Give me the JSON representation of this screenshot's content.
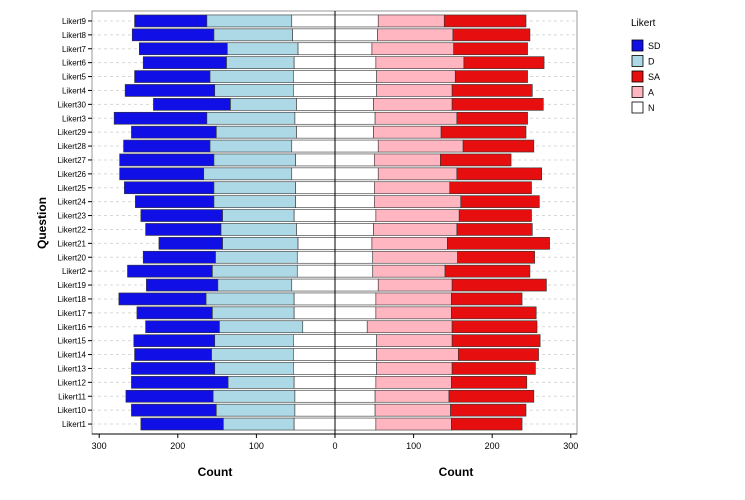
{
  "chart_data": {
    "type": "bar",
    "orientation": "horizontal-diverging-stacked",
    "ylabel": "Question",
    "xlabel_left": "Count",
    "xlabel_right": "Count",
    "xlim": [
      -300,
      300
    ],
    "xticks": [
      "300",
      "200",
      "100",
      "0",
      "100",
      "200",
      "300"
    ],
    "grid": "dashed-horizontal",
    "legend": {
      "title": "Likert",
      "placement": "right",
      "entries": [
        {
          "key": "SD",
          "label": "SD",
          "color": "#1010e6"
        },
        {
          "key": "D",
          "label": "D",
          "color": "#add8e6"
        },
        {
          "key": "SA",
          "label": "SA",
          "color": "#e60e0e"
        },
        {
          "key": "A",
          "label": "A",
          "color": "#ffb6c1"
        },
        {
          "key": "N",
          "label": "N",
          "color": "#ffffff"
        }
      ]
    },
    "categories": [
      "Likert9",
      "Likert8",
      "Likert7",
      "Likert6",
      "Likert5",
      "Likert4",
      "Likert30",
      "Likert3",
      "Likert29",
      "Likert28",
      "Likert27",
      "Likert26",
      "Likert25",
      "Likert24",
      "Likert23",
      "Likert22",
      "Likert21",
      "Likert20",
      "Likert2",
      "Likert19",
      "Likert18",
      "Likert17",
      "Likert16",
      "Likert15",
      "Likert14",
      "Likert13",
      "Likert12",
      "Likert11",
      "Likert10",
      "Likert1"
    ],
    "series": [
      {
        "key": "SD",
        "values": [
          92,
          104,
          112,
          106,
          96,
          114,
          98,
          118,
          108,
          110,
          120,
          107,
          114,
          100,
          104,
          96,
          81,
          92,
          108,
          91,
          111,
          96,
          94,
          103,
          98,
          106,
          123,
          111,
          108,
          105
        ]
      },
      {
        "key": "D",
        "values": [
          108,
          100,
          90,
          86,
          106,
          100,
          84,
          112,
          102,
          104,
          104,
          112,
          104,
          104,
          91,
          96,
          96,
          104,
          108,
          94,
          112,
          104,
          106,
          100,
          104,
          100,
          84,
          104,
          100,
          90
        ]
      },
      {
        "key": "N",
        "values": [
          110,
          108,
          94,
          104,
          106,
          106,
          98,
          102,
          98,
          110,
          100,
          110,
          100,
          100,
          104,
          98,
          94,
          96,
          96,
          110,
          104,
          104,
          82,
          106,
          106,
          106,
          104,
          102,
          102,
          104
        ]
      },
      {
        "key": "A",
        "values": [
          84,
          96,
          104,
          112,
          100,
          96,
          100,
          104,
          86,
          108,
          84,
          100,
          96,
          110,
          106,
          106,
          96,
          108,
          92,
          94,
          96,
          96,
          108,
          96,
          104,
          96,
          96,
          94,
          96,
          96
        ]
      },
      {
        "key": "SA",
        "values": [
          104,
          98,
          94,
          102,
          92,
          102,
          116,
          90,
          108,
          90,
          90,
          108,
          104,
          100,
          92,
          96,
          130,
          98,
          108,
          120,
          90,
          108,
          108,
          112,
          102,
          106,
          96,
          108,
          96,
          90
        ]
      }
    ]
  }
}
